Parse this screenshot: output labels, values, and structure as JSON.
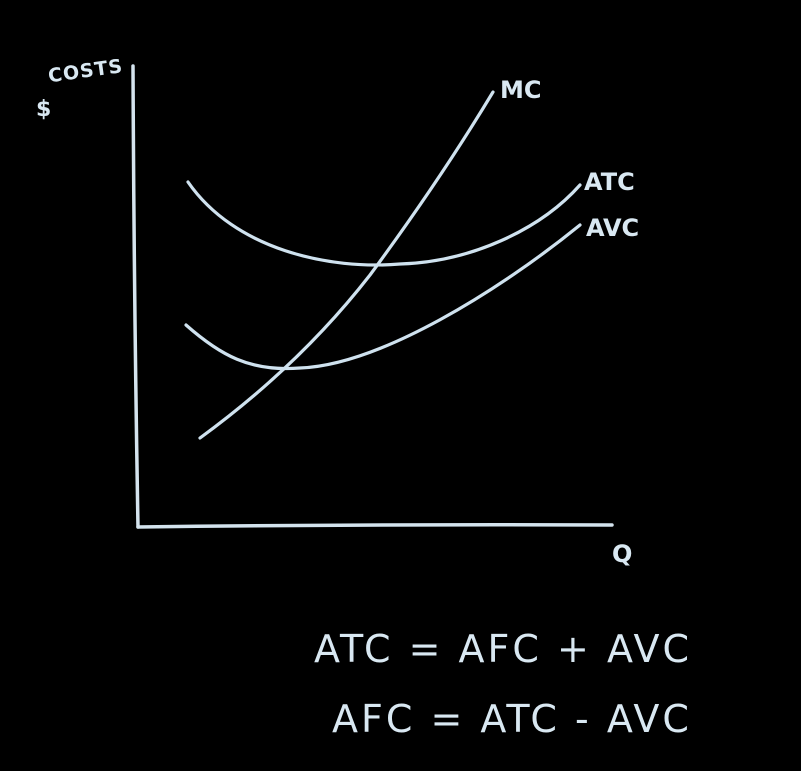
{
  "axes": {
    "y_label_top": "COSTS",
    "y_label_symbol": "$",
    "x_label": "Q"
  },
  "curves": {
    "mc": "MC",
    "atc": "ATC",
    "avc": "AVC"
  },
  "formulas": [
    "ATC = AFC + AVC",
    "AFC = ATC - AVC"
  ],
  "colors": {
    "background": "#000000",
    "chalk": "#d9e8f2"
  }
}
